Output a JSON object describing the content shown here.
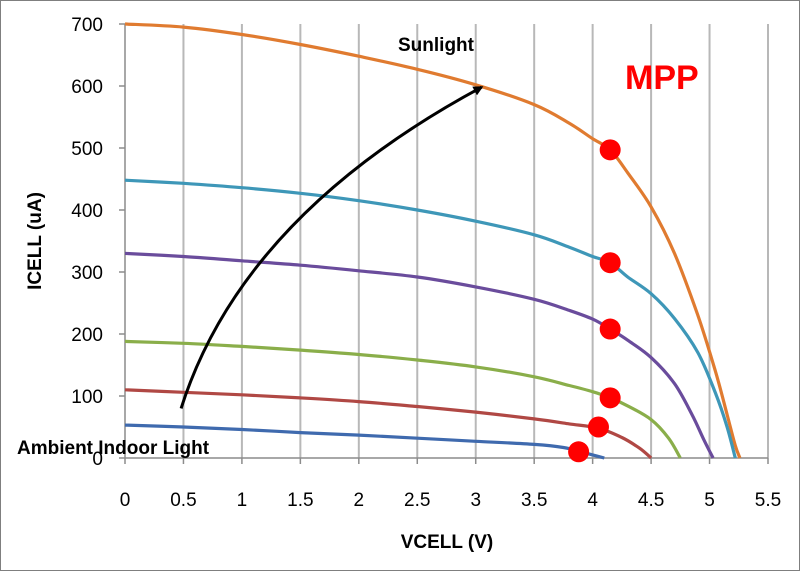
{
  "chart_data": {
    "type": "line",
    "title": "",
    "xlabel": "VCELL (V)",
    "ylabel": "ICELL (uA)",
    "xlim": [
      0,
      5.5
    ],
    "ylim": [
      0,
      700
    ],
    "x_ticks": [
      "0",
      "0.5",
      "1",
      "1.5",
      "2",
      "2.5",
      "3",
      "3.5",
      "4",
      "4.5",
      "5",
      "5.5"
    ],
    "y_ticks": [
      "0",
      "100",
      "200",
      "300",
      "400",
      "500",
      "600",
      "700"
    ],
    "grid": "vertical",
    "legend": "none",
    "series": [
      {
        "color": "#E07B30",
        "points": [
          [
            0,
            700
          ],
          [
            0.5,
            695
          ],
          [
            1,
            683
          ],
          [
            1.5,
            667
          ],
          [
            2,
            648
          ],
          [
            2.5,
            627
          ],
          [
            3,
            602
          ],
          [
            3.5,
            570
          ],
          [
            3.8,
            540
          ],
          [
            4.0,
            515
          ],
          [
            4.15,
            497
          ],
          [
            4.3,
            460
          ],
          [
            4.5,
            405
          ],
          [
            4.7,
            330
          ],
          [
            4.9,
            230
          ],
          [
            5.05,
            140
          ],
          [
            5.15,
            70
          ],
          [
            5.22,
            20
          ],
          [
            5.26,
            0
          ]
        ]
      },
      {
        "color": "#3E97B8",
        "points": [
          [
            0,
            448
          ],
          [
            0.5,
            443
          ],
          [
            1,
            436
          ],
          [
            1.5,
            427
          ],
          [
            2,
            415
          ],
          [
            2.5,
            400
          ],
          [
            3,
            382
          ],
          [
            3.5,
            360
          ],
          [
            3.8,
            340
          ],
          [
            4.0,
            325
          ],
          [
            4.15,
            315
          ],
          [
            4.3,
            292
          ],
          [
            4.5,
            265
          ],
          [
            4.7,
            225
          ],
          [
            4.9,
            170
          ],
          [
            5.05,
            105
          ],
          [
            5.15,
            50
          ],
          [
            5.22,
            0
          ]
        ]
      },
      {
        "color": "#6A4C9C",
        "points": [
          [
            0,
            330
          ],
          [
            0.5,
            325
          ],
          [
            1,
            318
          ],
          [
            1.5,
            311
          ],
          [
            2,
            302
          ],
          [
            2.5,
            292
          ],
          [
            3,
            276
          ],
          [
            3.5,
            256
          ],
          [
            3.8,
            238
          ],
          [
            4.0,
            224
          ],
          [
            4.15,
            208
          ],
          [
            4.3,
            190
          ],
          [
            4.5,
            162
          ],
          [
            4.7,
            120
          ],
          [
            4.85,
            70
          ],
          [
            4.95,
            30
          ],
          [
            5.03,
            0
          ]
        ]
      },
      {
        "color": "#8AAE4A",
        "points": [
          [
            0,
            188
          ],
          [
            0.5,
            185
          ],
          [
            1,
            180
          ],
          [
            1.5,
            174
          ],
          [
            2,
            167
          ],
          [
            2.5,
            158
          ],
          [
            3,
            147
          ],
          [
            3.5,
            131
          ],
          [
            3.8,
            117
          ],
          [
            4.0,
            107
          ],
          [
            4.15,
            97
          ],
          [
            4.3,
            84
          ],
          [
            4.5,
            62
          ],
          [
            4.65,
            32
          ],
          [
            4.75,
            0
          ]
        ]
      },
      {
        "color": "#B04844",
        "points": [
          [
            0,
            110
          ],
          [
            0.5,
            106
          ],
          [
            1,
            102
          ],
          [
            1.5,
            97
          ],
          [
            2,
            91
          ],
          [
            2.5,
            83
          ],
          [
            3,
            74
          ],
          [
            3.5,
            63
          ],
          [
            3.8,
            55
          ],
          [
            4.05,
            48
          ],
          [
            4.25,
            33
          ],
          [
            4.4,
            16
          ],
          [
            4.5,
            0
          ]
        ]
      },
      {
        "color": "#3F6AAE",
        "points": [
          [
            0,
            53
          ],
          [
            0.5,
            50
          ],
          [
            1,
            46
          ],
          [
            1.5,
            41
          ],
          [
            2,
            37
          ],
          [
            2.5,
            32
          ],
          [
            3,
            27
          ],
          [
            3.5,
            22
          ],
          [
            3.75,
            17
          ],
          [
            3.9,
            10
          ],
          [
            4.0,
            5
          ],
          [
            4.1,
            0
          ]
        ]
      }
    ],
    "mpp_points": [
      [
        4.15,
        497
      ],
      [
        4.15,
        315
      ],
      [
        4.15,
        208
      ],
      [
        4.15,
        97
      ],
      [
        4.05,
        50
      ],
      [
        3.88,
        10
      ]
    ],
    "annotations": {
      "sunlight": "Sunlight",
      "indoor": "Ambient Indoor Light",
      "mpp": "MPP"
    },
    "arrow": {
      "from": [
        0.48,
        80
      ],
      "control": [
        1.0,
        390
      ],
      "to": [
        3.05,
        598
      ]
    }
  }
}
